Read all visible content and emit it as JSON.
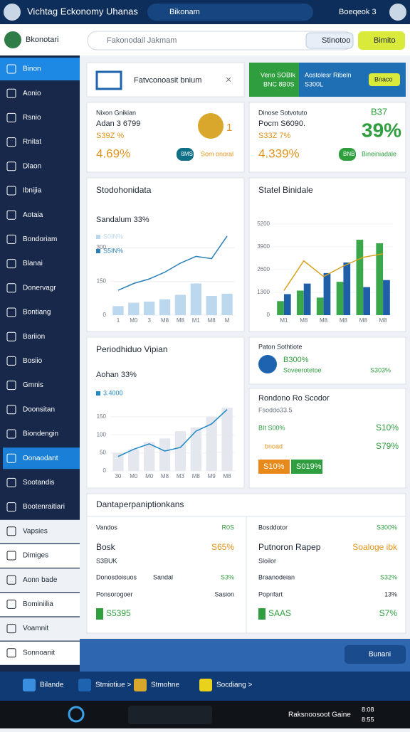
{
  "header": {
    "title": "Vichtag Eckonomy Uhanas",
    "search": "Bikonam",
    "user": "Boeqeok 3"
  },
  "subbar": {
    "profile": "Bkonotari",
    "search_placeholder": "Fakonodail Jakmam",
    "button1": "Stinotoo",
    "button2": "Bimito"
  },
  "sidebar": [
    "Binon",
    "Aonio",
    "Rsnio",
    "Rnitat",
    "Dlaon",
    "Ibnijia",
    "Aotaia",
    "Bondoriam",
    "Blanai",
    "Donervagr",
    "Bontiang",
    "Bariion",
    "Bosiio",
    "Gmnis",
    "Doonsitan",
    "Biondengin",
    "Oonaodant",
    "Sootandis",
    "Bootenraitiari",
    "Vapsies",
    "Dimiges",
    "Aonn bade",
    "Bominiilia",
    "Voamnit",
    "Sonnoanit"
  ],
  "banner": {
    "text": "Fatvconoasit bnium"
  },
  "promo": {
    "line1": "Veno SOBIk",
    "line2": "BNC 8B0S",
    "text1": "Aostolesr Ribeln",
    "text2": "S300L",
    "button": "Bnaco"
  },
  "stat_cards": [
    {
      "name": "Nixon Gnikian",
      "title": "Adan 3 6799",
      "sub": "S39Z %",
      "value": "4.69%",
      "badge": "ßMS",
      "link": "Som onoral",
      "side": "1"
    },
    {
      "name": "Dinose Sotvotuto",
      "title": "Pocm S6090.",
      "sub": "S33Z 7%",
      "value": "4.339%",
      "badge": "BNB",
      "link": "Bineiniadale",
      "big_label": "B37",
      "big": "39%"
    }
  ],
  "chart_data": [
    {
      "type": "combo",
      "title": "Stodohonidata",
      "subtitle": "Sandalum 33%",
      "categories": [
        "1",
        "M0",
        "3",
        "M8",
        "M8",
        "M1",
        "M8",
        "M"
      ],
      "ylim": [
        0,
        450
      ],
      "yticks": [
        0,
        150,
        300
      ],
      "series": [
        {
          "name": "S0IN%",
          "type": "bar",
          "color": "#bcd8ee",
          "values": [
            40,
            55,
            60,
            70,
            90,
            140,
            85,
            95
          ]
        },
        {
          "name": "S5IN%",
          "type": "line",
          "color": "#2a7fb8",
          "values": [
            110,
            140,
            160,
            190,
            230,
            260,
            250,
            350
          ]
        }
      ]
    },
    {
      "type": "combo",
      "title": "Statel Binidale",
      "categories": [
        "M1",
        "M8",
        "M8",
        "M8",
        "M8",
        "M8"
      ],
      "ylim": [
        0,
        5600
      ],
      "yticks": [
        0,
        1300,
        2600,
        3900,
        5200
      ],
      "series": [
        {
          "type": "bar",
          "color": "#3aa84a",
          "values": [
            800,
            1400,
            1000,
            1900,
            4300,
            4100
          ]
        },
        {
          "type": "bar",
          "color": "#1f5fa8",
          "values": [
            1200,
            1800,
            2400,
            3000,
            1600,
            2000
          ]
        },
        {
          "type": "line",
          "color": "#d6a21c",
          "values": [
            1400,
            3100,
            2200,
            2800,
            3300,
            3500
          ]
        }
      ]
    },
    {
      "type": "combo",
      "title": "Periodhiduo Vipian",
      "subtitle": "Aohan 33%",
      "categories": [
        "30",
        "M0",
        "M0",
        "M8",
        "M3",
        "M8",
        "M9",
        "M8"
      ],
      "ylim": [
        0,
        250
      ],
      "yticks": [
        0,
        50,
        100,
        150
      ],
      "series": [
        {
          "type": "bar",
          "color": "#e4e8ee",
          "values": [
            50,
            60,
            80,
            90,
            110,
            120,
            150,
            175
          ]
        },
        {
          "name": "3.4000",
          "type": "line",
          "color": "#1e88c8",
          "values": [
            40,
            60,
            75,
            55,
            65,
            110,
            130,
            170
          ]
        }
      ]
    }
  ],
  "status": {
    "title": "Paton Sothtiote",
    "value": "B300%",
    "label": "Soveerotetoe",
    "side": "S303%"
  },
  "report": {
    "title": "Rondono Ro Scodor",
    "row1": "Fsoddo33.5",
    "row2": "BIt S00%",
    "row2_value": "S10%",
    "row3": "bnoad",
    "row3_value": "S79%",
    "badge1": "S10%",
    "badge2": "S019%"
  },
  "details": {
    "title": "Dantaperpaniptionkans",
    "left": [
      [
        "Vandos",
        "R0S"
      ],
      [
        "Bosk",
        "S65%"
      ],
      [
        "S3BUK"
      ],
      [
        "Donosdoisuos",
        "Sandal",
        "S3%"
      ],
      [
        "Ponsorogoer",
        "Sasion"
      ],
      [
        "S5395"
      ]
    ],
    "right": [
      [
        "Bosddotor",
        "S300%"
      ],
      [
        "Putnoron Rapep",
        "Soaloge ibk"
      ],
      [
        "Sloilor"
      ],
      [
        "Braanodeian",
        "S32%"
      ],
      [
        "Popnfart",
        "13%"
      ],
      [
        "SAAS",
        "S7%"
      ]
    ]
  },
  "footer": {
    "button": "Bunani",
    "items": [
      "Bilande",
      "Stmiotiue >",
      "Stmohne",
      "Socdiang >"
    ],
    "taskbar": "Raksnoosoot Gaine",
    "time": "8:08",
    "date": "8:55"
  }
}
